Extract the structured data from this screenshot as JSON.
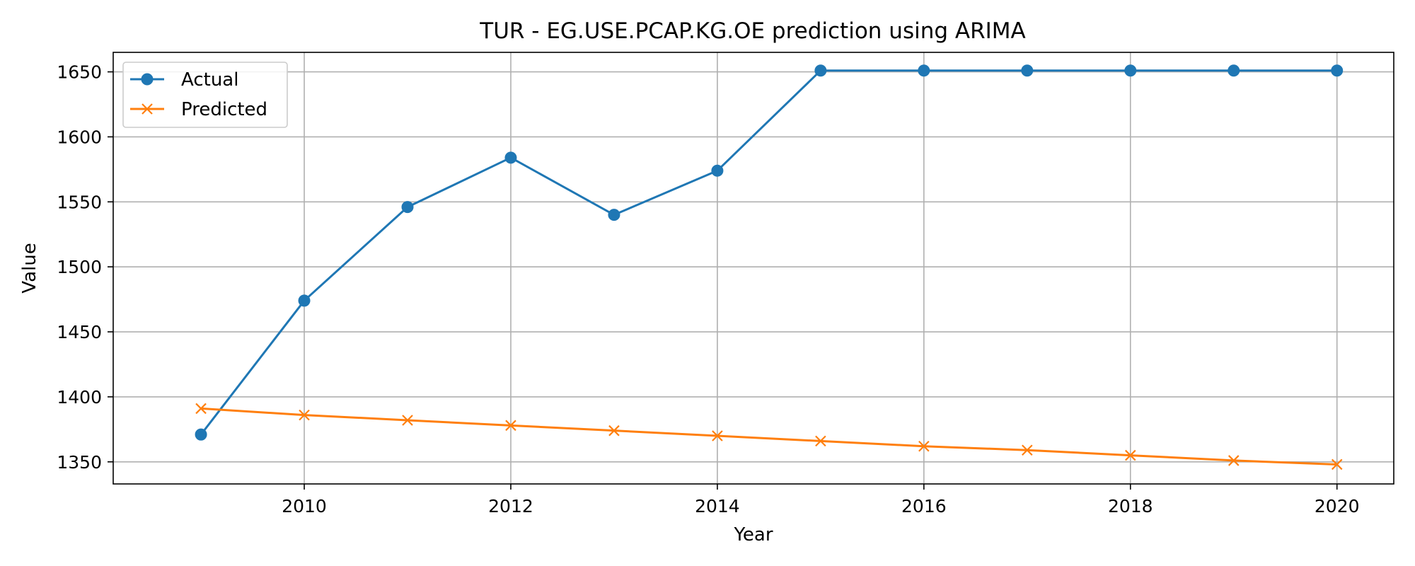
{
  "chart_data": {
    "type": "line",
    "title": "TUR - EG.USE.PCAP.KG.OE prediction using ARIMA",
    "xlabel": "Year",
    "ylabel": "Value",
    "xlim": [
      2008.15,
      2020.55
    ],
    "ylim": [
      1333,
      1665
    ],
    "x": [
      2009,
      2010,
      2011,
      2012,
      2013,
      2014,
      2015,
      2016,
      2017,
      2018,
      2019,
      2020
    ],
    "xticks": [
      2010,
      2012,
      2014,
      2016,
      2018,
      2020
    ],
    "yticks": [
      1350,
      1400,
      1450,
      1500,
      1550,
      1600,
      1650
    ],
    "grid": true,
    "legend_position": "upper-left",
    "series": [
      {
        "name": "Actual",
        "color": "#1f77b4",
        "marker": "circle",
        "values": [
          1371,
          1474,
          1546,
          1584,
          1540,
          1574,
          1651,
          1651,
          1651,
          1651,
          1651,
          1651
        ]
      },
      {
        "name": "Predicted",
        "color": "#ff7f0e",
        "marker": "x",
        "values": [
          1391,
          1386,
          1382,
          1378,
          1374,
          1370,
          1366,
          1362,
          1359,
          1355,
          1351,
          1348
        ]
      }
    ]
  }
}
